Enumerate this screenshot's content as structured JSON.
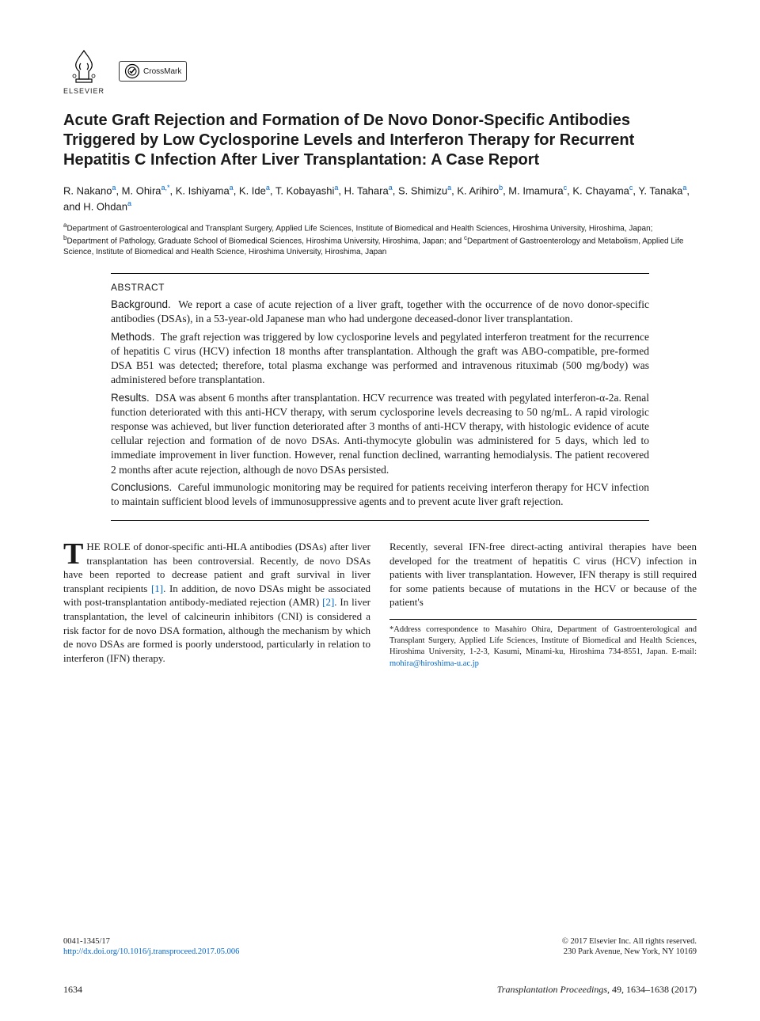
{
  "logos": {
    "elsevier_label": "ELSEVIER",
    "crossmark_label": "CrossMark"
  },
  "title": "Acute Graft Rejection and Formation of De Novo Donor-Specific Antibodies Triggered by Low Cyclosporine Levels and Interferon Therapy for Recurrent Hepatitis C Infection After Liver Transplantation: A Case Report",
  "authors": [
    {
      "name": "R. Nakano",
      "aff": "a"
    },
    {
      "name": "M. Ohira",
      "aff": "a,*"
    },
    {
      "name": "K. Ishiyama",
      "aff": "a"
    },
    {
      "name": "K. Ide",
      "aff": "a"
    },
    {
      "name": "T. Kobayashi",
      "aff": "a"
    },
    {
      "name": "H. Tahara",
      "aff": "a"
    },
    {
      "name": "S. Shimizu",
      "aff": "a"
    },
    {
      "name": "K. Arihiro",
      "aff": "b"
    },
    {
      "name": "M. Imamura",
      "aff": "c"
    },
    {
      "name": "K. Chayama",
      "aff": "c"
    },
    {
      "name": "Y. Tanaka",
      "aff": "a"
    },
    {
      "name": "H. Ohdan",
      "aff": "a"
    }
  ],
  "affiliations_html": "<sup>a</sup>Department of Gastroenterological and Transplant Surgery, Applied Life Sciences, Institute of Biomedical and Health Sciences, Hiroshima University, Hiroshima, Japan; <sup>b</sup>Department of Pathology, Graduate School of Biomedical Sciences, Hiroshima University, Hiroshima, Japan; and <sup>c</sup>Department of Gastroenterology and Metabolism, Applied Life Science, Institute of Biomedical and Health Science, Hiroshima University, Hiroshima, Japan",
  "abstract": {
    "heading": "ABSTRACT",
    "sections": [
      {
        "label": "Background.",
        "text": "We report a case of acute rejection of a liver graft, together with the occurrence of de novo donor-specific antibodies (DSAs), in a 53-year-old Japanese man who had undergone deceased-donor liver transplantation."
      },
      {
        "label": "Methods.",
        "text": "The graft rejection was triggered by low cyclosporine levels and pegylated interferon treatment for the recurrence of hepatitis C virus (HCV) infection 18 months after transplantation. Although the graft was ABO-compatible, pre-formed DSA B51 was detected; therefore, total plasma exchange was performed and intravenous rituximab (500 mg/body) was administered before transplantation."
      },
      {
        "label": "Results.",
        "text": "DSA was absent 6 months after transplantation. HCV recurrence was treated with pegylated interferon-α-2a. Renal function deteriorated with this anti-HCV therapy, with serum cyclosporine levels decreasing to 50 ng/mL. A rapid virologic response was achieved, but liver function deteriorated after 3 months of anti-HCV therapy, with histologic evidence of acute cellular rejection and formation of de novo DSAs. Anti-thymocyte globulin was administered for 5 days, which led to immediate improvement in liver function. However, renal function declined, warranting hemodialysis. The patient recovered 2 months after acute rejection, although de novo DSAs persisted."
      },
      {
        "label": "Conclusions.",
        "text": "Careful immunologic monitoring may be required for patients receiving interferon therapy for HCV infection to maintain sufficient blood levels of immunosuppressive agents and to prevent acute liver graft rejection."
      }
    ]
  },
  "body": {
    "col1": "HE ROLE of donor-specific anti-HLA antibodies (DSAs) after liver transplantation has been controversial. Recently, de novo DSAs have been reported to decrease patient and graft survival in liver transplant recipients [1]. In addition, de novo DSAs might be associated with post-transplantation antibody-mediated rejection (AMR) [2]. In liver transplantation, the level of calcineurin inhibitors (CNI) is considered a risk factor for de novo DSA formation, although the mechanism by which de novo DSAs are formed is poorly understood, particularly in relation to interferon (IFN) therapy.",
    "col2": "Recently, several IFN-free direct-acting antiviral therapies have been developed for the treatment of hepatitis C virus (HCV) infection in patients with liver transplantation. However, IFN therapy is still required for some patients because of mutations in the HCV or because of the patient's",
    "dropcap": "T"
  },
  "correspondence": {
    "text": "*Address correspondence to Masahiro Ohira, Department of Gastroenterological and Transplant Surgery, Applied Life Sciences, Institute of Biomedical and Health Sciences, Hiroshima University, 1-2-3, Kasumi, Minami-ku, Hiroshima 734-8551, Japan. E-mail: ",
    "email": "mohira@hiroshima-u.ac.jp"
  },
  "footer_left": {
    "issn": "0041-1345/17",
    "doi": "http://dx.doi.org/10.1016/j.transproceed.2017.05.006"
  },
  "footer_right": {
    "copyright": "© 2017 Elsevier Inc. All rights reserved.",
    "address": "230 Park Avenue, New York, NY 10169"
  },
  "page_footer": {
    "page": "1634",
    "journal": "Transplantation Proceedings,",
    "citation": " 49, 1634–1638 (2017)"
  },
  "colors": {
    "link": "#0066cc",
    "text": "#1a1a1a",
    "rule": "#000000"
  }
}
